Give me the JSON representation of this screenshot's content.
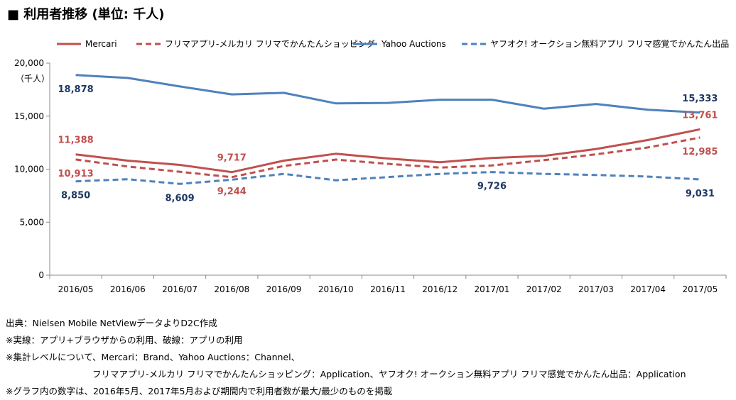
{
  "header": {
    "title": "■ 利用者推移 (単位: 千人)"
  },
  "chart_data": {
    "type": "line",
    "unit_label": "（千人）",
    "categories": [
      "2016/05",
      "2016/06",
      "2016/07",
      "2016/08",
      "2016/09",
      "2016/10",
      "2016/11",
      "2016/12",
      "2017/01",
      "2017/02",
      "2017/03",
      "2017/04",
      "2017/05"
    ],
    "ylim": [
      0,
      20000
    ],
    "yticks": [
      0,
      5000,
      10000,
      15000,
      20000
    ],
    "ytick_labels": [
      "0",
      "5,000",
      "10,000",
      "15,000",
      "20,000"
    ],
    "grid": false,
    "legend_position": "top",
    "series": [
      {
        "name": "Mercari",
        "color": "#c0504d",
        "style": "solid",
        "values": [
          11388,
          10800,
          10400,
          9717,
          10800,
          11450,
          11000,
          10650,
          11050,
          11250,
          11900,
          12750,
          13761
        ]
      },
      {
        "name": "フリマアプリ-メルカリ フリマでかんたんショッピング",
        "color": "#c0504d",
        "style": "dashed",
        "values": [
          10913,
          10250,
          9750,
          9244,
          10300,
          10900,
          10500,
          10150,
          10350,
          10850,
          11400,
          12050,
          12985
        ]
      },
      {
        "name": "Yahoo Auctions",
        "color": "#4f81bd",
        "style": "solid",
        "values": [
          18878,
          18600,
          17800,
          17050,
          17200,
          16200,
          16250,
          16550,
          16550,
          15700,
          16150,
          15600,
          15333
        ]
      },
      {
        "name": "ヤフオク! オークション無料アプリ フリマ感覚でかんたん出品",
        "color": "#4f81bd",
        "style": "dashed",
        "values": [
          8850,
          9050,
          8609,
          9000,
          9550,
          8950,
          9250,
          9550,
          9726,
          9550,
          9450,
          9300,
          9031
        ]
      }
    ],
    "annotations": [
      {
        "series": 0,
        "index": 0,
        "text": "11,388",
        "color": "#c0504d",
        "place": "above"
      },
      {
        "series": 1,
        "index": 0,
        "text": "10,913",
        "color": "#c0504d",
        "place": "below"
      },
      {
        "series": 2,
        "index": 0,
        "text": "18,878",
        "color": "#1f3864",
        "place": "below"
      },
      {
        "series": 3,
        "index": 0,
        "text": "8,850",
        "color": "#1f3864",
        "place": "below"
      },
      {
        "series": 0,
        "index": 3,
        "text": "9,717",
        "color": "#c0504d",
        "place": "above"
      },
      {
        "series": 1,
        "index": 3,
        "text": "9,244",
        "color": "#c0504d",
        "place": "below"
      },
      {
        "series": 3,
        "index": 2,
        "text": "8,609",
        "color": "#1f3864",
        "place": "below"
      },
      {
        "series": 3,
        "index": 8,
        "text": "9,726",
        "color": "#1f3864",
        "place": "below"
      },
      {
        "series": 2,
        "index": 12,
        "text": "15,333",
        "color": "#1f3864",
        "place": "above"
      },
      {
        "series": 0,
        "index": 12,
        "text": "13,761",
        "color": "#c0504d",
        "place": "above"
      },
      {
        "series": 1,
        "index": 12,
        "text": "12,985",
        "color": "#c0504d",
        "place": "below"
      },
      {
        "series": 3,
        "index": 12,
        "text": "9,031",
        "color": "#1f3864",
        "place": "below"
      }
    ]
  },
  "notes": {
    "line1": "出典：Nielsen Mobile NetViewデータよりD2C作成",
    "line2": "※実線：アプリ+ブラウザからの利用、破線：アプリの利用",
    "line3": "※集計レベルについて、Mercari：Brand、Yahoo Auctions：Channel、",
    "line4": "フリマアプリ-メルカリ フリマでかんたんショッピング：Application、ヤフオク! オークション無料アプリ フリマ感覚でかんたん出品：Application",
    "line5": "※グラフ内の数字は、2016年5月、2017年5月および期間内で利用者数が最大/最少のものを掲載"
  }
}
